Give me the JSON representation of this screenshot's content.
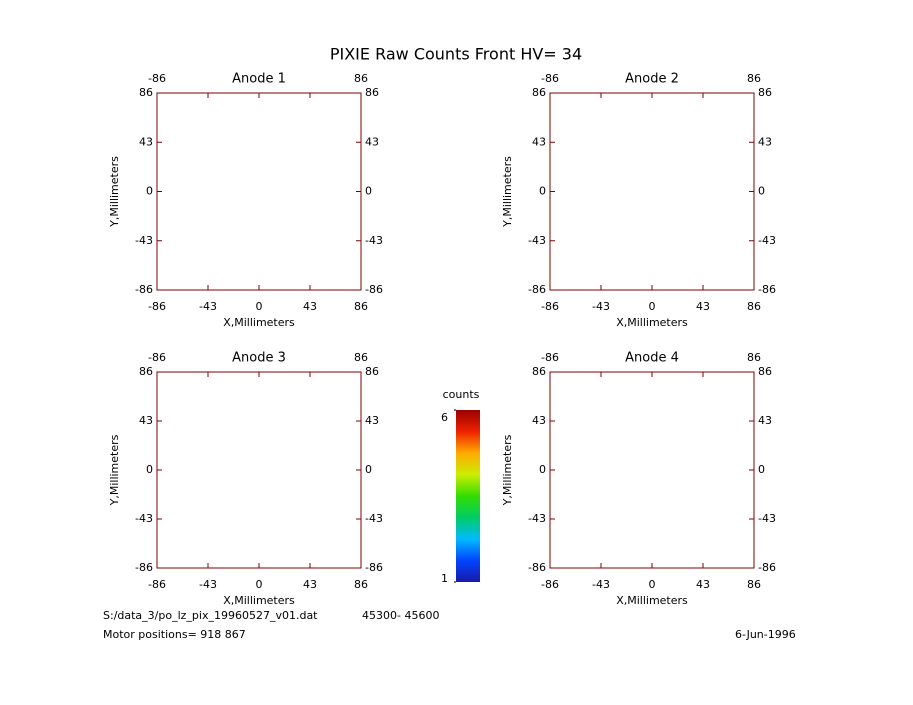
{
  "title": "PIXIE Raw Counts Front HV= 34",
  "chart_data": [
    {
      "type": "image",
      "title": "Anode 1",
      "xlabel": "X,Millimeters",
      "ylabel": "Y,Millimeters",
      "xlim": [
        -86,
        86
      ],
      "ylim": [
        -86,
        86
      ],
      "xticks": [
        -86,
        -43,
        0,
        43,
        86
      ],
      "yticks": [
        -86,
        -43,
        0,
        43,
        86
      ]
    },
    {
      "type": "image",
      "title": "Anode 2",
      "xlabel": "X,Millimeters",
      "ylabel": "Y,Millimeters",
      "xlim": [
        -86,
        86
      ],
      "ylim": [
        -86,
        86
      ],
      "xticks": [
        -86,
        -43,
        0,
        43,
        86
      ],
      "yticks": [
        -86,
        -43,
        0,
        43,
        86
      ]
    },
    {
      "type": "image",
      "title": "Anode 3",
      "xlabel": "X,Millimeters",
      "ylabel": "Y,Millimeters",
      "xlim": [
        -86,
        86
      ],
      "ylim": [
        -86,
        86
      ],
      "xticks": [
        -86,
        -43,
        0,
        43,
        86
      ],
      "yticks": [
        -86,
        -43,
        0,
        43,
        86
      ]
    },
    {
      "type": "image",
      "title": "Anode 4",
      "xlabel": "X,Millimeters",
      "ylabel": "Y,Millimeters",
      "xlim": [
        -86,
        86
      ],
      "ylim": [
        -86,
        86
      ],
      "xticks": [
        -86,
        -43,
        0,
        43,
        86
      ],
      "yticks": [
        -86,
        -43,
        0,
        43,
        86
      ]
    },
    {
      "type": "colorbar",
      "title": "counts",
      "ylim": [
        1,
        6
      ],
      "yticks": [
        1,
        6
      ],
      "colors": [
        "#1a1aa8",
        "#0044ff",
        "#00bbff",
        "#00cc66",
        "#33dd00",
        "#ccee00",
        "#ffaa00",
        "#ee2200",
        "#9a0000"
      ]
    }
  ],
  "footer": {
    "file": "S:/data_3/po_lz_pix_19960527_v01.dat",
    "range": "45300- 45600",
    "motor": "Motor positions= 918 867",
    "date": "6-Jun-1996"
  }
}
